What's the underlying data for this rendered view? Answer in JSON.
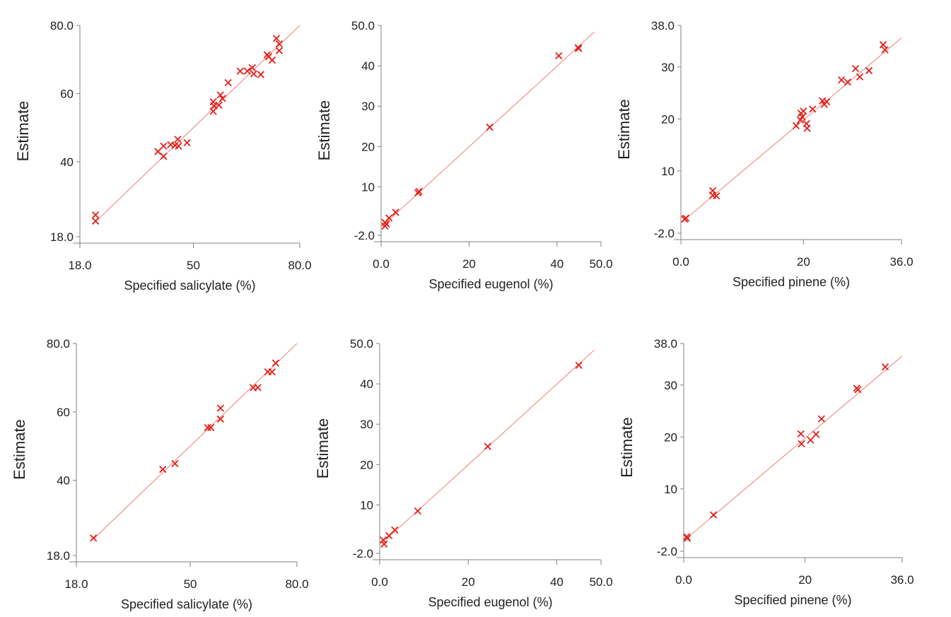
{
  "colors": {
    "marker": "#e3201b",
    "fit_line": "#f08a80",
    "axis": "#8a7f7c"
  },
  "chart_data": [
    {
      "type": "scatter",
      "xlabel": "Specified salicylate (%)",
      "ylabel": "Estimate",
      "xlim": [
        18,
        80
      ],
      "ylim": [
        18,
        80
      ],
      "xticks": [
        "18.0",
        "50",
        "80.0"
      ],
      "yticks": [
        "18.0",
        "40",
        "60",
        "80.0"
      ],
      "marker": "x",
      "fit_line": [
        [
          23,
          23
        ],
        [
          80,
          80
        ]
      ],
      "points": [
        [
          22.4,
          24.4
        ],
        [
          22.4,
          22.6
        ],
        [
          40,
          43
        ],
        [
          41.6,
          44.6
        ],
        [
          41.6,
          41.6
        ],
        [
          43.6,
          45
        ],
        [
          44.8,
          44.8
        ],
        [
          45.6,
          46.6
        ],
        [
          45.8,
          44.6
        ],
        [
          48.2,
          45.6
        ],
        [
          55.6,
          57.6
        ],
        [
          55.6,
          54.8
        ],
        [
          55.8,
          56.4
        ],
        [
          57.2,
          56.6
        ],
        [
          57.6,
          59.6
        ],
        [
          58.2,
          58.6
        ],
        [
          59.8,
          63.2
        ],
        [
          63.2,
          66.6
        ],
        [
          65.2,
          66.6
        ],
        [
          66.6,
          67.6
        ],
        [
          67,
          65.8
        ],
        [
          69,
          65.6
        ],
        [
          70.8,
          71.4
        ],
        [
          71.2,
          70.8
        ],
        [
          72.2,
          69.8
        ],
        [
          73.4,
          76.2
        ],
        [
          74.2,
          74.6
        ],
        [
          74.2,
          72.6
        ]
      ]
    },
    {
      "type": "scatter",
      "xlabel": "Specified eugenol (%)",
      "ylabel": "Estimate",
      "xlim": [
        0,
        50
      ],
      "ylim": [
        -2,
        50
      ],
      "xticks": [
        "0.0",
        "20",
        "40",
        "50.0"
      ],
      "yticks": [
        "-2.0",
        "10",
        "20",
        "30",
        "40",
        "50.0"
      ],
      "marker": "x",
      "fit_line": [
        [
          0.5,
          0.5
        ],
        [
          48.5,
          48.4
        ]
      ],
      "points": [
        [
          0.9,
          1.2
        ],
        [
          0.9,
          0.3
        ],
        [
          1.2,
          0.8
        ],
        [
          1.8,
          2.3
        ],
        [
          3.3,
          3.7
        ],
        [
          8.4,
          8.5
        ],
        [
          8.6,
          8.9
        ],
        [
          24.7,
          24.8
        ],
        [
          40.4,
          42.5
        ],
        [
          44.8,
          44.5
        ],
        [
          44.9,
          44.3
        ]
      ]
    },
    {
      "type": "scatter",
      "xlabel": "Specified pinene (%)",
      "ylabel": "Estimate",
      "xlim": [
        0,
        36
      ],
      "ylim": [
        -2,
        38
      ],
      "xticks": [
        "0.0",
        "20",
        "36.0"
      ],
      "yticks": [
        "-2.0",
        "10",
        "20",
        "30",
        "38.0"
      ],
      "marker": "x",
      "fit_line": [
        [
          0.5,
          0.5
        ],
        [
          36,
          35.6
        ]
      ],
      "points": [
        [
          0.8,
          0.9
        ],
        [
          0.6,
          0.7
        ],
        [
          5.2,
          6.2
        ],
        [
          5.2,
          5.3
        ],
        [
          5.8,
          5.2
        ],
        [
          18.8,
          18.7
        ],
        [
          19.6,
          21.1
        ],
        [
          19.8,
          20.4
        ],
        [
          19.5,
          19.8
        ],
        [
          20,
          21.5
        ],
        [
          20.5,
          19.1
        ],
        [
          20.6,
          18.2
        ],
        [
          21.5,
          21.9
        ],
        [
          23.1,
          23.5
        ],
        [
          23.4,
          22.8
        ],
        [
          23.8,
          23.3
        ],
        [
          26.2,
          27.5
        ],
        [
          27.2,
          27.1
        ],
        [
          28.5,
          29.7
        ],
        [
          29.2,
          28.1
        ],
        [
          30.7,
          29.3
        ],
        [
          33,
          34.3
        ],
        [
          33.3,
          33.3
        ]
      ]
    },
    {
      "type": "scatter",
      "xlabel": "Specified salicylate (%)",
      "ylabel": "Estimate",
      "xlim": [
        18,
        80
      ],
      "ylim": [
        18,
        80
      ],
      "xticks": [
        "18.0",
        "50",
        "80.0"
      ],
      "yticks": [
        "18.0",
        "40",
        "60",
        "80.0"
      ],
      "marker": "x",
      "fit_line": [
        [
          23,
          23
        ],
        [
          80,
          80
        ]
      ],
      "points": [
        [
          22.8,
          23.1
        ],
        [
          42.3,
          43.2
        ],
        [
          45.7,
          44.9
        ],
        [
          54.9,
          55.4
        ],
        [
          55.8,
          55.4
        ],
        [
          58.5,
          61.1
        ],
        [
          58.5,
          57.9
        ],
        [
          67.7,
          67.1
        ],
        [
          69,
          67.1
        ],
        [
          71.8,
          71.7
        ],
        [
          73,
          71.7
        ],
        [
          74,
          74.3
        ]
      ]
    },
    {
      "type": "scatter",
      "xlabel": "Specified eugenol (%)",
      "ylabel": "Estimate",
      "xlim": [
        0,
        50
      ],
      "ylim": [
        -2,
        50
      ],
      "xticks": [
        "0.0",
        "20",
        "40",
        "50.0"
      ],
      "yticks": [
        "-2.0",
        "10",
        "20",
        "30",
        "40",
        "50.0"
      ],
      "marker": "x",
      "fit_line": [
        [
          0.5,
          0.5
        ],
        [
          48.5,
          48.4
        ]
      ],
      "points": [
        [
          0.8,
          1.3
        ],
        [
          1,
          0.3
        ],
        [
          2.1,
          2.4
        ],
        [
          3.4,
          3.8
        ],
        [
          8.6,
          8.5
        ],
        [
          24.4,
          24.5
        ],
        [
          45,
          44.6
        ]
      ]
    },
    {
      "type": "scatter",
      "xlabel": "Specified pinene (%)",
      "ylabel": "Estimate",
      "xlim": [
        0,
        36
      ],
      "ylim": [
        -2,
        38
      ],
      "xticks": [
        "0.0",
        "20",
        "36.0"
      ],
      "yticks": [
        "-2.0",
        "10",
        "20",
        "30",
        "38.0"
      ],
      "marker": "x",
      "fit_line": [
        [
          0.5,
          0.5
        ],
        [
          36,
          35.6
        ]
      ],
      "points": [
        [
          0.5,
          0.8
        ],
        [
          0.6,
          0.5
        ],
        [
          4.9,
          5
        ],
        [
          19.3,
          20.6
        ],
        [
          19.4,
          18.7
        ],
        [
          20.9,
          19.4
        ],
        [
          21.8,
          20.5
        ],
        [
          22.7,
          23.5
        ],
        [
          28.5,
          29.4
        ],
        [
          28.7,
          29.1
        ],
        [
          33.2,
          33.5
        ]
      ]
    }
  ]
}
